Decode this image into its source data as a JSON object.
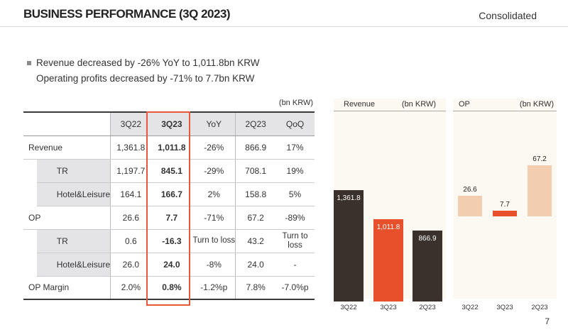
{
  "header": {
    "title": "BUSINESS PERFORMANCE (3Q 2023)",
    "scope": "Consolidated"
  },
  "bullets": {
    "line1": "Revenue decreased by -26% YoY to 1,011.8bn KRW",
    "line2": "Operating profits decreased by -71% to 7.7bn KRW"
  },
  "table": {
    "unit": "(bn KRW)",
    "columns": [
      "3Q22",
      "3Q23",
      "YoY",
      "2Q23",
      "QoQ"
    ],
    "rows": [
      {
        "label": "Revenue",
        "values": [
          "1,361.8",
          "1,011.8",
          "-26%",
          "866.9",
          "17%"
        ]
      },
      {
        "label": "TR",
        "values": [
          "1,197.7",
          "845.1",
          "-29%",
          "708.1",
          "19%"
        ]
      },
      {
        "label": "Hotel&Leisure",
        "values": [
          "164.1",
          "166.7",
          "2%",
          "158.8",
          "5%"
        ]
      },
      {
        "label": "OP",
        "values": [
          "26.6",
          "7.7",
          "-71%",
          "67.2",
          "-89%"
        ]
      },
      {
        "label": "TR",
        "values": [
          "0.6",
          "-16.3",
          "Turn to loss",
          "43.2",
          "Turn to loss"
        ]
      },
      {
        "label": "Hotel&Leisure",
        "values": [
          "26.0",
          "24.0",
          "-8%",
          "24.0",
          "-"
        ]
      },
      {
        "label": "OP Margin",
        "values": [
          "2.0%",
          "0.8%",
          "-1.2%p",
          "7.8%",
          "-7.0%p"
        ]
      }
    ]
  },
  "chart_data": [
    {
      "type": "bar",
      "title": "Revenue",
      "unit": "(bn KRW)",
      "categories": [
        "3Q22",
        "3Q23",
        "2Q23"
      ],
      "values": [
        1361.8,
        1011.8,
        866.9
      ],
      "labels": [
        "1,361.8",
        "1,011.8",
        "866.9"
      ],
      "colors": [
        "#3a302c",
        "#e8502c",
        "#3a302c"
      ],
      "ylim": [
        0,
        1600
      ]
    },
    {
      "type": "bar",
      "title": "OP",
      "unit": "(bn KRW)",
      "categories": [
        "3Q22",
        "3Q23",
        "2Q23"
      ],
      "values": [
        26.6,
        7.7,
        67.2
      ],
      "labels": [
        "26.6",
        "7.7",
        "67.2"
      ],
      "colors": [
        "#f2cdb0",
        "#e8502c",
        "#f2cdb0"
      ],
      "ylim": [
        0,
        80
      ]
    }
  ],
  "footer": {
    "page": "7"
  }
}
